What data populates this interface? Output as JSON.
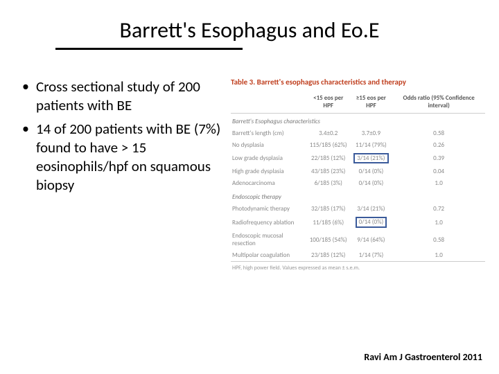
{
  "title": "Barrett's Esophagus and Eo.E",
  "bullets": [
    "Cross sectional study of 200 patients with BE",
    "14 of 200 patients with BE (7%) found to have > 15 eosinophils/hpf on squamous biopsy"
  ],
  "table": {
    "caption": "Table 3. Barrett's esophagus characteristics and therapy",
    "headers": [
      "",
      "<15 eos per HPF",
      "≥15 eos per HPF",
      "Odds ratio (95% Confidence interval)"
    ],
    "sections": [
      {
        "title": "Barrett's Esophagus characteristics",
        "rows": [
          {
            "label": "Barrett's length (cm)",
            "c1": "3.4±0.2",
            "c2": "3.7±0.9",
            "c3": "0.58",
            "hl": false
          },
          {
            "label": "No dysplasia",
            "c1": "115/185 (62%)",
            "c2": "11/14 (79%)",
            "c3": "0.26",
            "hl": false
          },
          {
            "label": "Low grade dysplasia",
            "c1": "22/185 (12%)",
            "c2": "3/14 (21%)",
            "c3": "0.39",
            "hl": true
          },
          {
            "label": "High grade dysplasia",
            "c1": "43/185 (23%)",
            "c2": "0/14 (0%)",
            "c3": "0.04",
            "hl": false
          },
          {
            "label": "Adenocarcinoma",
            "c1": "6/185 (3%)",
            "c2": "0/14 (0%)",
            "c3": "1.0",
            "hl": false
          }
        ]
      },
      {
        "title": "Endoscopic therapy",
        "rows": [
          {
            "label": "Photodynamic therapy",
            "c1": "32/185 (17%)",
            "c2": "3/14 (21%)",
            "c3": "0.72",
            "hl": false
          },
          {
            "label": "Radiofrequency ablation",
            "c1": "11/185 (6%)",
            "c2": "0/14 (0%)",
            "c3": "1.0",
            "hl": true
          },
          {
            "label": "Endoscopic mucosal resection",
            "c1": "100/185 (54%)",
            "c2": "9/14 (64%)",
            "c3": "0.58",
            "hl": false
          },
          {
            "label": "Multipolar coagulation",
            "c1": "23/185 (12%)",
            "c2": "1/14 (7%)",
            "c3": "1.0",
            "hl": false
          }
        ]
      }
    ],
    "footnote": "HPF, high power field.\nValues expressed as mean ± s.e.m."
  },
  "citation": "Ravi Am J Gastroenterol 2011"
}
